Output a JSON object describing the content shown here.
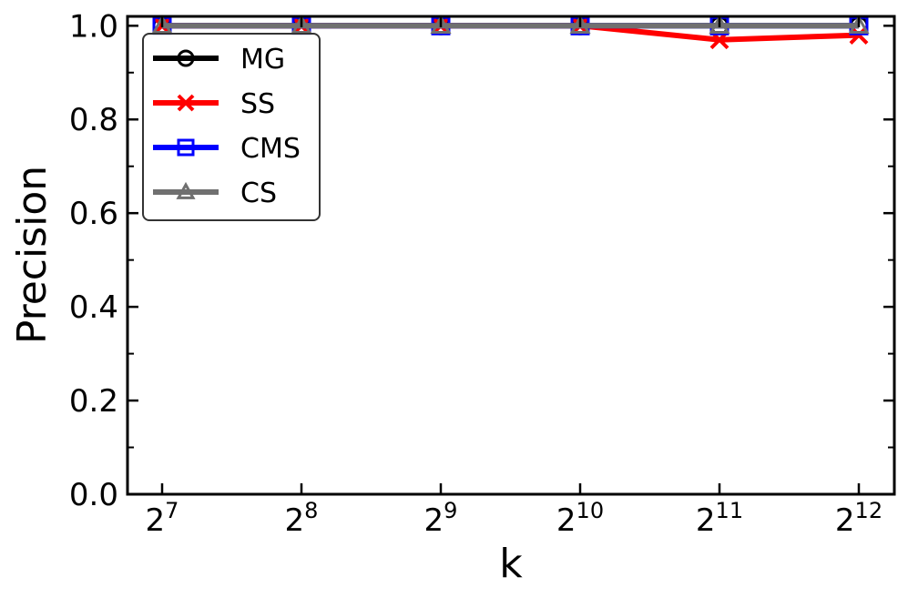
{
  "chart_data": {
    "type": "line",
    "title": "",
    "xlabel": "k",
    "ylabel": "Precision",
    "x_ticks": [
      {
        "base": "2",
        "exp": "7"
      },
      {
        "base": "2",
        "exp": "8"
      },
      {
        "base": "2",
        "exp": "9"
      },
      {
        "base": "2",
        "exp": "10"
      },
      {
        "base": "2",
        "exp": "11"
      },
      {
        "base": "2",
        "exp": "12"
      }
    ],
    "x": [
      128,
      256,
      512,
      1024,
      2048,
      4096
    ],
    "x_scale": "log2",
    "y_ticks": [
      "0.0",
      "0.2",
      "0.4",
      "0.6",
      "0.8",
      "1.0"
    ],
    "ylim": [
      0.0,
      1.02
    ],
    "grid": false,
    "legend_position": "top-left",
    "series": [
      {
        "name": "MG",
        "color": "#000000",
        "marker": "circle",
        "values": [
          1.0,
          1.0,
          1.0,
          1.0,
          1.0,
          1.0
        ]
      },
      {
        "name": "SS",
        "color": "#ff0000",
        "marker": "x",
        "values": [
          1.0,
          1.0,
          1.0,
          1.0,
          0.97,
          0.98
        ]
      },
      {
        "name": "CMS",
        "color": "#0000ff",
        "marker": "square",
        "values": [
          1.0,
          1.0,
          1.0,
          1.0,
          1.0,
          1.0
        ]
      },
      {
        "name": "CS",
        "color": "#707070",
        "marker": "triangle",
        "values": [
          1.0,
          1.0,
          1.0,
          1.0,
          1.0,
          1.0
        ]
      }
    ]
  }
}
